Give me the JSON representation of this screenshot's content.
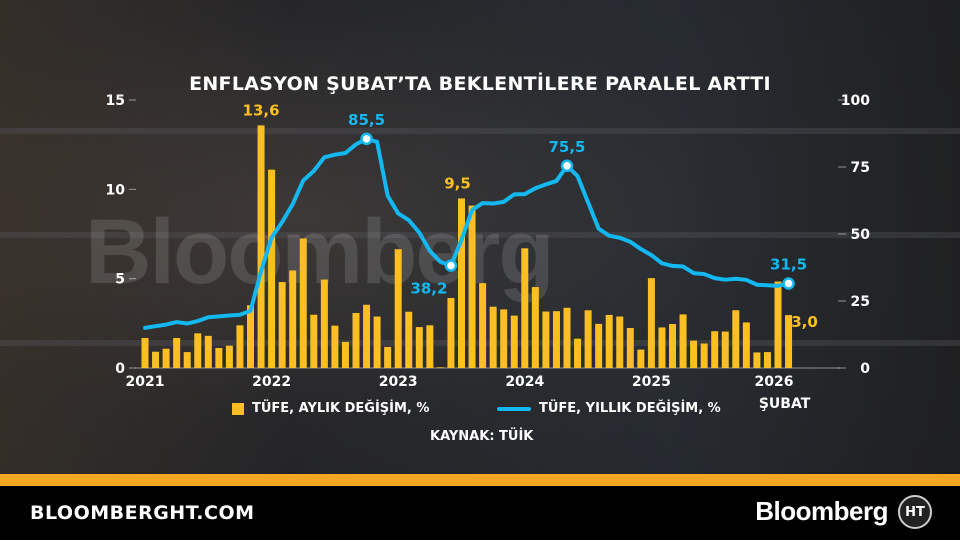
{
  "title": "ENFLASYON ŞUBAT’TA BEKLENTİLERE PARALEL ARTTI",
  "watermark": "Bloomberg",
  "chart_data": {
    "type": "bar+line",
    "title": "ENFLASYON ŞUBAT’TA BEKLENTİLERE PARALEL ARTTI",
    "x_tick_labels": [
      "2021",
      "2022",
      "2023",
      "2024",
      "2025",
      "2026"
    ],
    "x_sublabel": "ŞUBAT",
    "left_axis": {
      "ylim": [
        0,
        15
      ],
      "ticks": [
        "0",
        "5",
        "10",
        "15"
      ]
    },
    "right_axis": {
      "ylim": [
        0,
        100
      ],
      "ticks": [
        "0",
        "25",
        "50",
        "75",
        "100"
      ]
    },
    "months": "2021-01 to 2026-02",
    "series": [
      {
        "name": "TÜFE, AYLIK DEĞİŞİM, %",
        "type": "bar",
        "axis": "left",
        "color": "#fbbf24",
        "values": [
          1.68,
          0.91,
          1.08,
          1.68,
          0.89,
          1.94,
          1.8,
          1.12,
          1.25,
          2.39,
          3.51,
          13.58,
          11.1,
          4.81,
          5.46,
          7.25,
          2.98,
          4.95,
          2.37,
          1.46,
          3.08,
          3.54,
          2.88,
          1.18,
          6.65,
          3.15,
          2.29,
          2.39,
          0.04,
          3.92,
          9.49,
          9.09,
          4.75,
          3.43,
          3.28,
          2.93,
          6.7,
          4.53,
          3.16,
          3.18,
          3.37,
          1.64,
          3.23,
          2.47,
          2.97,
          2.88,
          2.24,
          1.03,
          5.03,
          2.27,
          2.46,
          3.0,
          1.53,
          1.37,
          2.06,
          2.04,
          3.23,
          2.55,
          0.87,
          0.89,
          4.84,
          2.96
        ]
      },
      {
        "name": "TÜFE, YILLIK DEĞİŞİM, %",
        "type": "line",
        "axis": "right",
        "color": "#14b8f0",
        "values": [
          14.97,
          15.61,
          16.19,
          17.14,
          16.59,
          17.53,
          18.95,
          19.25,
          19.58,
          19.89,
          21.31,
          36.08,
          48.69,
          54.44,
          61.14,
          69.97,
          73.5,
          78.62,
          79.6,
          80.21,
          83.45,
          85.51,
          84.39,
          64.27,
          57.68,
          55.18,
          50.51,
          43.68,
          39.59,
          38.21,
          47.83,
          58.94,
          61.53,
          61.36,
          61.98,
          64.77,
          64.86,
          67.07,
          68.5,
          69.8,
          75.45,
          71.6,
          61.78,
          51.97,
          49.38,
          48.58,
          47.09,
          44.38,
          42.12,
          39.05,
          38.1,
          37.86,
          35.41,
          35.05,
          33.52,
          32.95,
          33.29,
          32.87,
          31.07,
          30.89,
          30.65,
          31.53
        ]
      }
    ],
    "annotations": [
      {
        "series": 0,
        "index": 11,
        "text": "13,6"
      },
      {
        "series": 0,
        "index": 30,
        "text": "9,5"
      },
      {
        "series": 0,
        "index": 61,
        "text": "3,0"
      },
      {
        "series": 1,
        "index": 21,
        "text": "85,5"
      },
      {
        "series": 1,
        "index": 29,
        "text": "38,2"
      },
      {
        "series": 1,
        "index": 40,
        "text": "75,5"
      },
      {
        "series": 1,
        "index": 61,
        "text": "31,5"
      }
    ],
    "legend": "bottom"
  },
  "legend": {
    "bar": "TÜFE, AYLIK DEĞİŞİM, %",
    "line": "TÜFE, YILLIK DEĞİŞİM, %"
  },
  "source": "KAYNAK: TÜİK",
  "footer": {
    "site": "BLOOMBERGHT.COM",
    "brand": "Bloomberg",
    "logo": "HT"
  }
}
